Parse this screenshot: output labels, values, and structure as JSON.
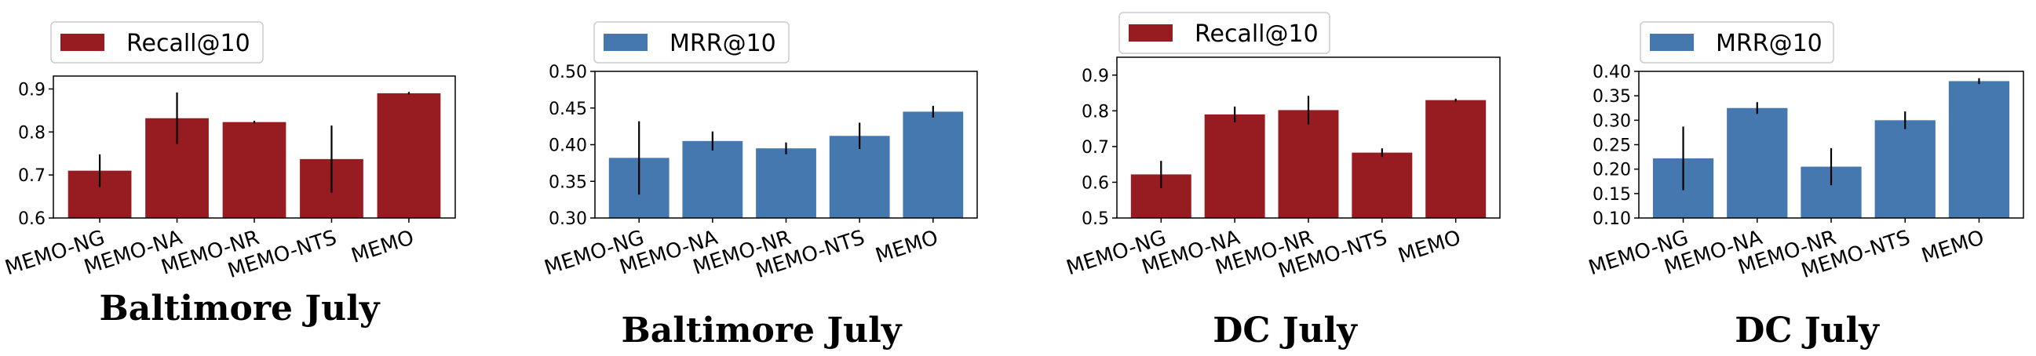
{
  "chart_data": [
    {
      "type": "bar",
      "title": "Baltimore July",
      "legend": "Recall@10",
      "legend_position": "top-left-outside",
      "color": "#971c21",
      "categories": [
        "MEMO-NG",
        "MEMO-NA",
        "MEMO-NR",
        "MEMO-NTS",
        "MEMO"
      ],
      "values": [
        0.71,
        0.832,
        0.823,
        0.737,
        0.89
      ],
      "errors": [
        0.038,
        0.06,
        0.003,
        0.078,
        0.003
      ],
      "ylim": [
        0.6,
        0.93
      ],
      "yticks": [
        "0.6",
        "0.7",
        "0.8",
        "0.9"
      ],
      "grid": false
    },
    {
      "type": "bar",
      "title": "Baltimore July",
      "legend": "MRR@10",
      "legend_position": "top-left-outside",
      "color": "#4678b0",
      "categories": [
        "MEMO-NG",
        "MEMO-NA",
        "MEMO-NR",
        "MEMO-NTS",
        "MEMO"
      ],
      "values": [
        0.382,
        0.405,
        0.395,
        0.412,
        0.445
      ],
      "errors": [
        0.05,
        0.013,
        0.008,
        0.018,
        0.008
      ],
      "ylim": [
        0.3,
        0.5
      ],
      "yticks": [
        "0.30",
        "0.35",
        "0.40",
        "0.45",
        "0.50"
      ],
      "grid": false
    },
    {
      "type": "bar",
      "title": "DC July",
      "legend": "Recall@10",
      "legend_position": "top-left-outside",
      "color": "#971c21",
      "categories": [
        "MEMO-NG",
        "MEMO-NA",
        "MEMO-NR",
        "MEMO-NTS",
        "MEMO"
      ],
      "values": [
        0.622,
        0.79,
        0.802,
        0.683,
        0.83
      ],
      "errors": [
        0.038,
        0.022,
        0.04,
        0.012,
        0.004
      ],
      "ylim": [
        0.5,
        0.95
      ],
      "yticks": [
        "0.5",
        "0.6",
        "0.7",
        "0.8",
        "0.9"
      ],
      "grid": false
    },
    {
      "type": "bar",
      "title": "DC July",
      "legend": "MRR@10",
      "legend_position": "top-left-outside",
      "color": "#4678b0",
      "categories": [
        "MEMO-NG",
        "MEMO-NA",
        "MEMO-NR",
        "MEMO-NTS",
        "MEMO"
      ],
      "values": [
        0.222,
        0.325,
        0.205,
        0.3,
        0.38
      ],
      "errors": [
        0.065,
        0.012,
        0.038,
        0.018,
        0.006
      ],
      "ylim": [
        0.1,
        0.4
      ],
      "yticks": [
        "0.10",
        "0.15",
        "0.20",
        "0.25",
        "0.30",
        "0.35",
        "0.40"
      ],
      "grid": false
    }
  ]
}
